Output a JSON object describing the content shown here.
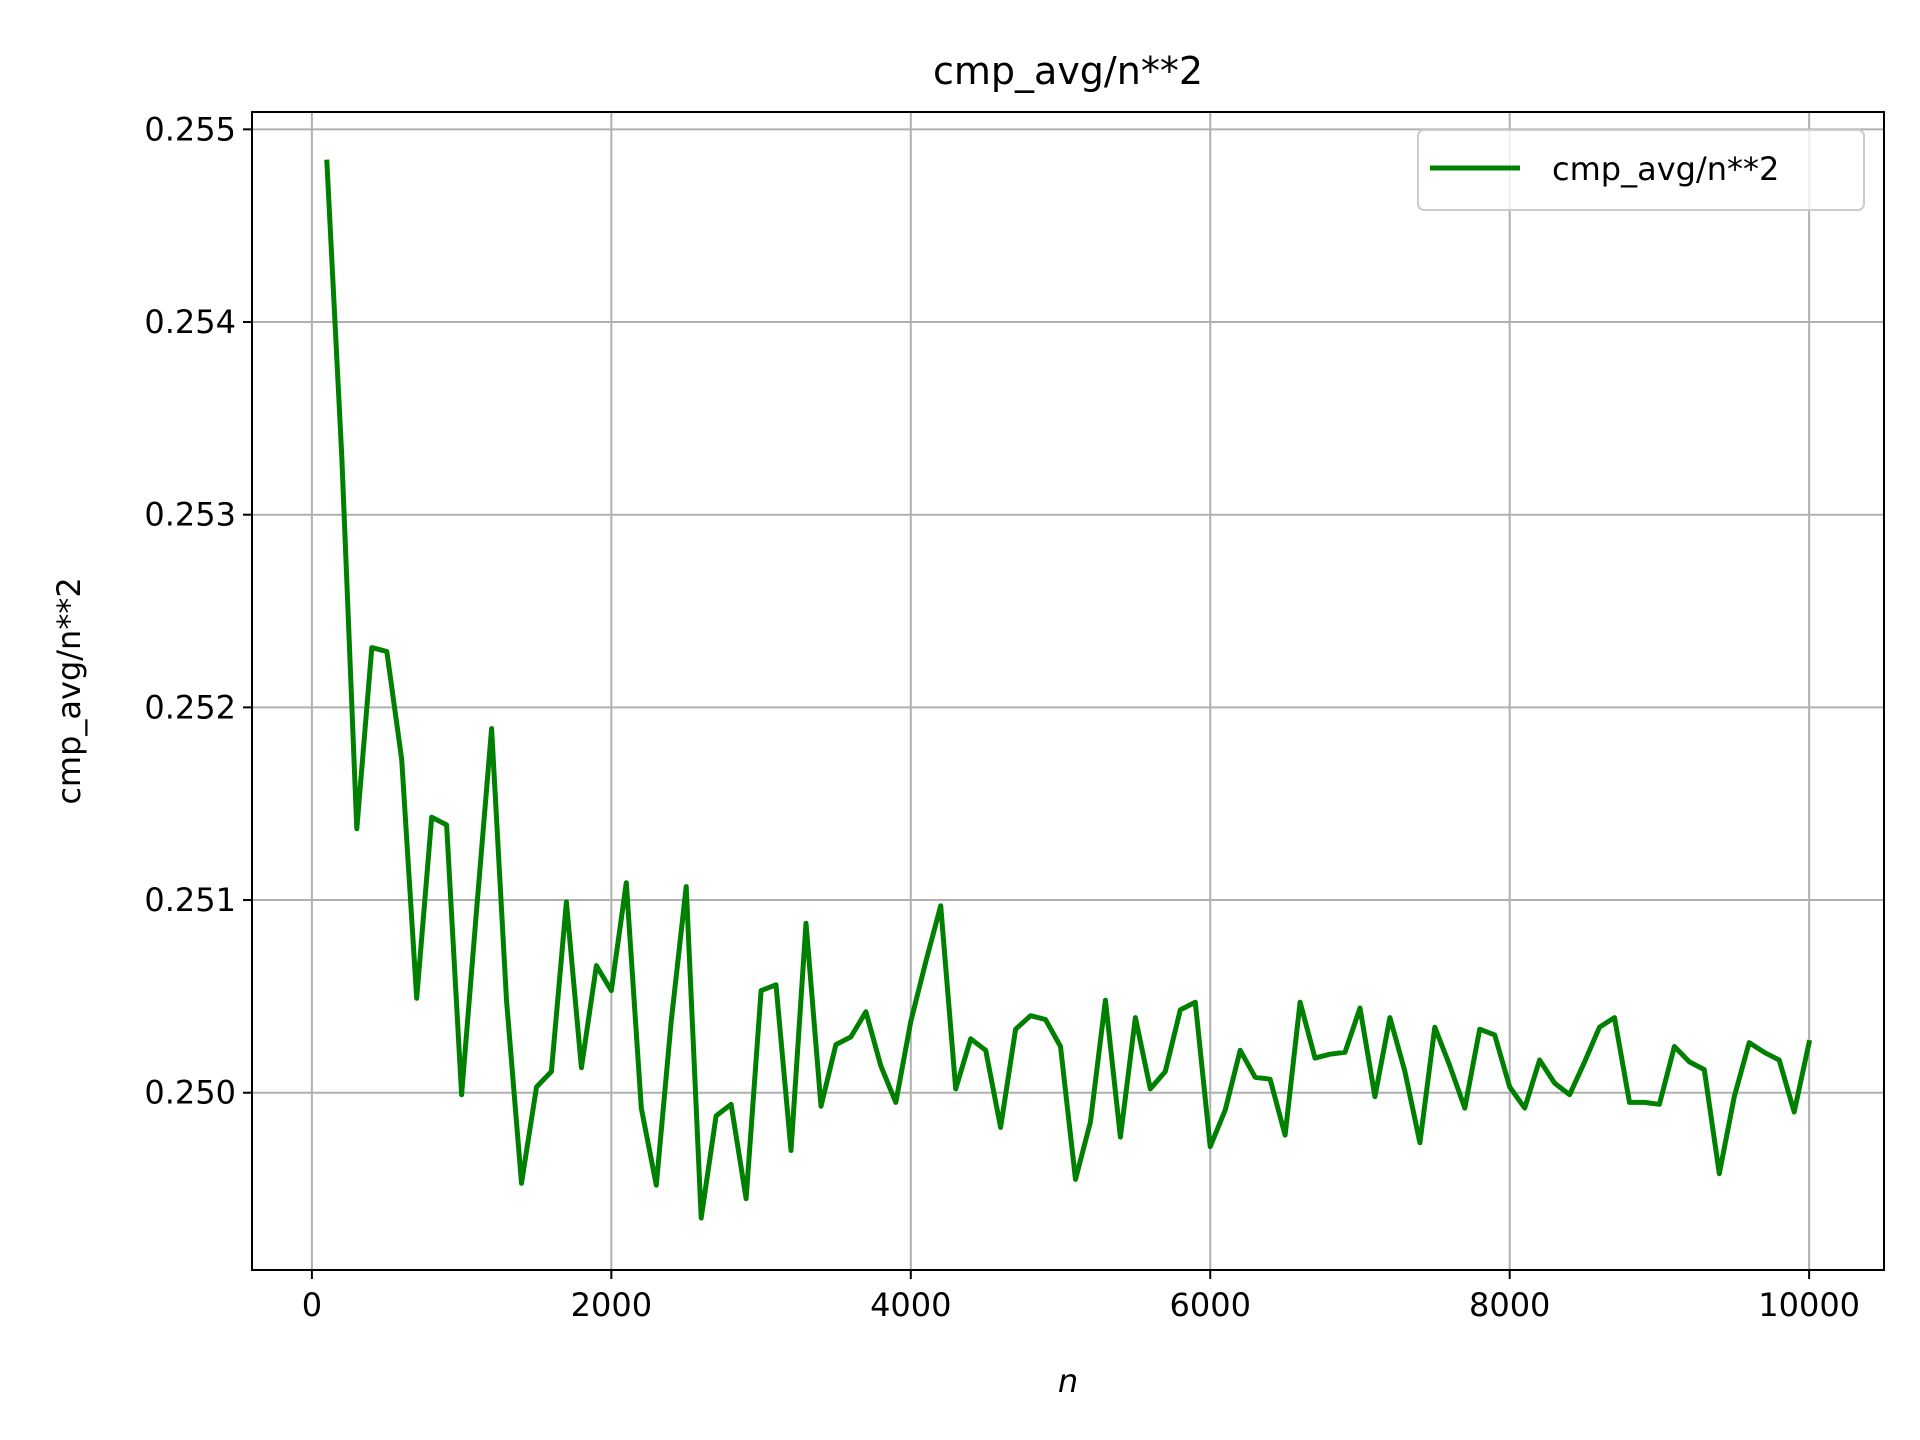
{
  "chart_data": {
    "type": "line",
    "title": "cmp_avg/n**2",
    "xlabel": "n",
    "ylabel": "cmp_avg/n**2",
    "xlim": [
      -400,
      10500
    ],
    "ylim": [
      0.24908,
      0.25509
    ],
    "xticks": [
      0,
      2000,
      4000,
      6000,
      8000,
      10000
    ],
    "xtick_labels": [
      "0",
      "2000",
      "4000",
      "6000",
      "8000",
      "10000"
    ],
    "yticks": [
      0.25,
      0.251,
      0.252,
      0.253,
      0.254,
      0.255
    ],
    "ytick_labels": [
      "0.250",
      "0.251",
      "0.252",
      "0.253",
      "0.254",
      "0.255"
    ],
    "grid": true,
    "legend_position": "upper right",
    "series": [
      {
        "name": "cmp_avg/n**2",
        "color": "#008000",
        "x": [
          100,
          200,
          300,
          400,
          500,
          600,
          700,
          800,
          900,
          1000,
          1100,
          1200,
          1300,
          1400,
          1500,
          1600,
          1700,
          1800,
          1900,
          2000,
          2100,
          2200,
          2300,
          2400,
          2500,
          2600,
          2700,
          2800,
          2900,
          3000,
          3100,
          3200,
          3300,
          3400,
          3500,
          3600,
          3700,
          3800,
          3900,
          4000,
          4100,
          4200,
          4300,
          4400,
          4500,
          4600,
          4700,
          4800,
          4900,
          5000,
          5100,
          5200,
          5300,
          5400,
          5500,
          5600,
          5700,
          5800,
          5900,
          6000,
          6100,
          6200,
          6300,
          6400,
          6500,
          6600,
          6700,
          6800,
          6900,
          7000,
          7100,
          7200,
          7300,
          7400,
          7500,
          7600,
          7700,
          7800,
          7900,
          8000,
          8100,
          8200,
          8300,
          8400,
          8500,
          8600,
          8700,
          8800,
          8900,
          9000,
          9100,
          9200,
          9300,
          9400,
          9500,
          9600,
          9700,
          9800,
          9900,
          10000
        ],
        "y": [
          0.25483,
          0.2533,
          0.25137,
          0.25231,
          0.25229,
          0.25173,
          0.25049,
          0.25143,
          0.25139,
          0.24999,
          0.25095,
          0.25189,
          0.25048,
          0.24953,
          0.25003,
          0.25011,
          0.25099,
          0.25013,
          0.25066,
          0.25053,
          0.25109,
          0.24992,
          0.24952,
          0.25037,
          0.25107,
          0.24935,
          0.24988,
          0.24994,
          0.24945,
          0.25053,
          0.25056,
          0.2497,
          0.25088,
          0.24993,
          0.25025,
          0.25029,
          0.25042,
          0.25014,
          0.24995,
          0.25037,
          0.25068,
          0.25097,
          0.25002,
          0.25028,
          0.25022,
          0.24982,
          0.25033,
          0.2504,
          0.25038,
          0.25024,
          0.24955,
          0.24985,
          0.25048,
          0.24977,
          0.25039,
          0.25002,
          0.25011,
          0.25043,
          0.25047,
          0.24972,
          0.24991,
          0.25022,
          0.25008,
          0.25007,
          0.24978,
          0.25047,
          0.25018,
          0.2502,
          0.25021,
          0.25044,
          0.24998,
          0.25039,
          0.25011,
          0.24974,
          0.25034,
          0.25014,
          0.24992,
          0.25033,
          0.2503,
          0.25003,
          0.24992,
          0.25017,
          0.25005,
          0.24999,
          0.25016,
          0.25034,
          0.25039,
          0.24995,
          0.24995,
          0.24994,
          0.25024,
          0.25016,
          0.25012,
          0.24958,
          0.24998,
          0.25026,
          0.25021,
          0.25017,
          0.2499,
          0.25026
        ]
      }
    ]
  }
}
